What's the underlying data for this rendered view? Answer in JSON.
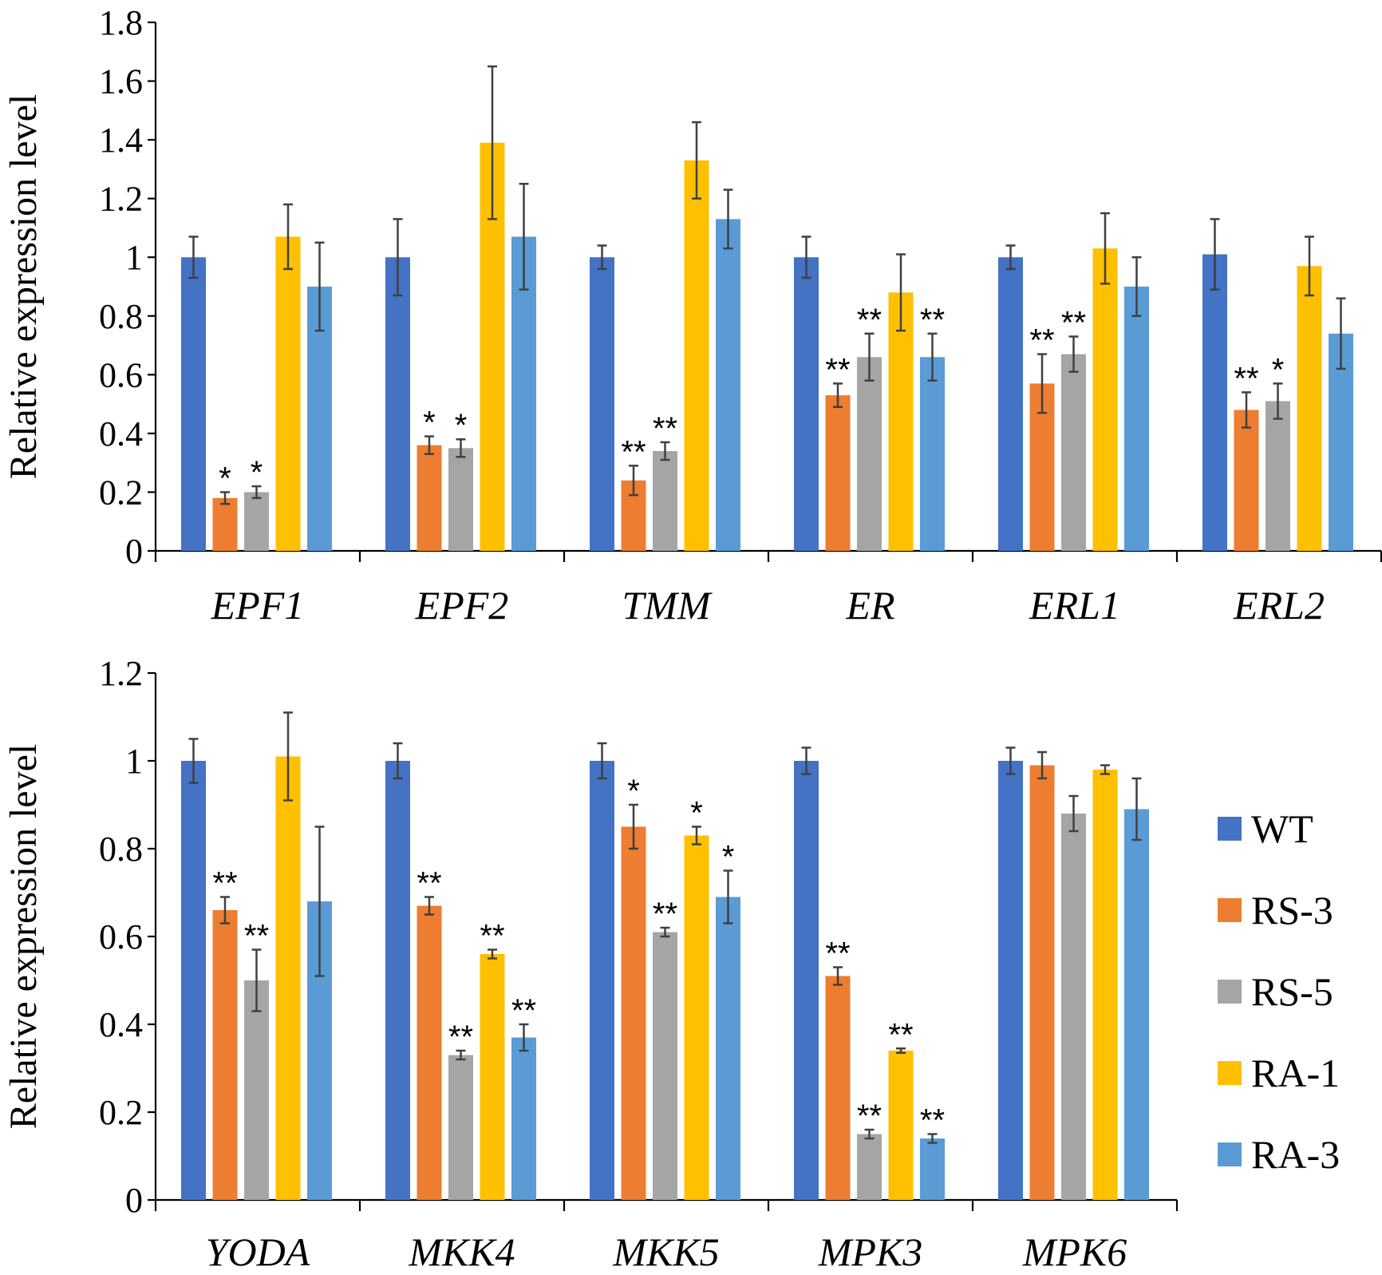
{
  "legend": [
    {
      "name": "WT",
      "color": "#4472C4"
    },
    {
      "name": "RS-3",
      "color": "#ED7D31"
    },
    {
      "name": "RS-5",
      "color": "#A5A5A5"
    },
    {
      "name": "RA-1",
      "color": "#FFC000"
    },
    {
      "name": "RA-3",
      "color": "#5B9BD5"
    }
  ],
  "chart_data": [
    {
      "type": "bar",
      "ylabel": "Relative expression level",
      "ylim": [
        0,
        1.8
      ],
      "yticks": [
        "0",
        "0.2",
        "0.4",
        "0.6",
        "0.8",
        "1",
        "1.2",
        "1.4",
        "1.6",
        "1.8"
      ],
      "categories": [
        "EPF1",
        "EPF2",
        "TMM",
        "ER",
        "ERL1",
        "ERL2"
      ],
      "series": [
        {
          "name": "WT",
          "values": [
            1.0,
            1.0,
            1.0,
            1.0,
            1.0,
            1.01
          ],
          "errors": [
            0.07,
            0.13,
            0.04,
            0.07,
            0.04,
            0.12
          ],
          "sig": [
            "",
            "",
            "",
            "",
            "",
            ""
          ]
        },
        {
          "name": "RS-3",
          "values": [
            0.18,
            0.36,
            0.24,
            0.53,
            0.57,
            0.48
          ],
          "errors": [
            0.02,
            0.03,
            0.05,
            0.04,
            0.1,
            0.06
          ],
          "sig": [
            "*",
            "*",
            "**",
            "**",
            "**",
            "**"
          ]
        },
        {
          "name": "RS-5",
          "values": [
            0.2,
            0.35,
            0.34,
            0.66,
            0.67,
            0.51
          ],
          "errors": [
            0.02,
            0.03,
            0.03,
            0.08,
            0.06,
            0.06
          ],
          "sig": [
            "*",
            "*",
            "**",
            "**",
            "**",
            "*"
          ]
        },
        {
          "name": "RA-1",
          "values": [
            1.07,
            1.39,
            1.33,
            0.88,
            1.03,
            0.97
          ],
          "errors": [
            0.11,
            0.26,
            0.13,
            0.13,
            0.12,
            0.1
          ],
          "sig": [
            "",
            "",
            "",
            "",
            "",
            ""
          ]
        },
        {
          "name": "RA-3",
          "values": [
            0.9,
            1.07,
            1.13,
            0.66,
            0.9,
            0.74
          ],
          "errors": [
            0.15,
            0.18,
            0.1,
            0.08,
            0.1,
            0.12
          ],
          "sig": [
            "",
            "",
            "",
            "**",
            "",
            ""
          ]
        }
      ]
    },
    {
      "type": "bar",
      "ylabel": "Relative expression level",
      "ylim": [
        0,
        1.2
      ],
      "yticks": [
        "0",
        "0.2",
        "0.4",
        "0.6",
        "0.8",
        "1",
        "1.2"
      ],
      "categories": [
        "YODA",
        "MKK4",
        "MKK5",
        "MPK3",
        "MPK6"
      ],
      "series": [
        {
          "name": "WT",
          "values": [
            1.0,
            1.0,
            1.0,
            1.0,
            1.0
          ],
          "errors": [
            0.05,
            0.04,
            0.04,
            0.03,
            0.03
          ],
          "sig": [
            "",
            "",
            "",
            "",
            ""
          ]
        },
        {
          "name": "RS-3",
          "values": [
            0.66,
            0.67,
            0.85,
            0.51,
            0.99
          ],
          "errors": [
            0.03,
            0.02,
            0.05,
            0.02,
            0.03
          ],
          "sig": [
            "**",
            "**",
            "*",
            "**",
            ""
          ]
        },
        {
          "name": "RS-5",
          "values": [
            0.5,
            0.33,
            0.61,
            0.15,
            0.88
          ],
          "errors": [
            0.07,
            0.01,
            0.01,
            0.01,
            0.04
          ],
          "sig": [
            "**",
            "**",
            "**",
            "**",
            ""
          ]
        },
        {
          "name": "RA-1",
          "values": [
            1.01,
            0.56,
            0.83,
            0.34,
            0.98
          ],
          "errors": [
            0.1,
            0.01,
            0.02,
            0.005,
            0.01
          ],
          "sig": [
            "",
            "**",
            "*",
            "**",
            ""
          ]
        },
        {
          "name": "RA-3",
          "values": [
            0.68,
            0.37,
            0.69,
            0.14,
            0.89
          ],
          "errors": [
            0.17,
            0.03,
            0.06,
            0.01,
            0.07
          ],
          "sig": [
            "",
            "**",
            "*",
            "**",
            ""
          ]
        }
      ]
    }
  ]
}
